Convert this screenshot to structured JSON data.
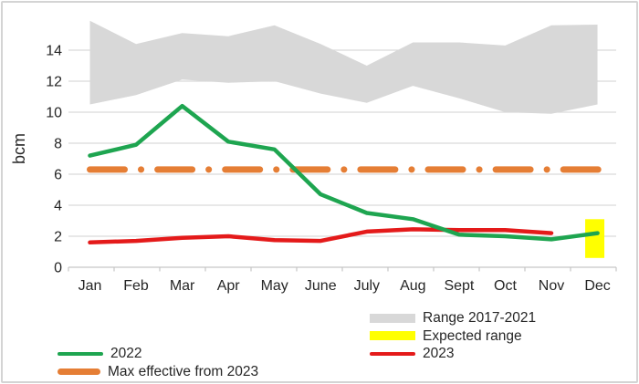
{
  "colors": {
    "band": "#d8d8d8",
    "green": "#1ea550",
    "red": "#e41a1a",
    "orange": "#e57e35",
    "yellow": "#ffff00",
    "grid": "#d9d9d9",
    "axis": "#c6c6c6",
    "text": "#262626"
  },
  "chart_data": {
    "type": "line",
    "title": "",
    "xlabel": "",
    "ylabel": "bcm",
    "ylim": [
      0,
      16
    ],
    "y_ticks": [
      0,
      2,
      4,
      6,
      8,
      10,
      12,
      14
    ],
    "grid": true,
    "categories": [
      "Jan",
      "Feb",
      "Mar",
      "Apr",
      "May",
      "June",
      "July",
      "Aug",
      "Sept",
      "Oct",
      "Nov",
      "Dec"
    ],
    "series": [
      {
        "name": "Range 2017-2021",
        "type": "band",
        "color": "#d8d8d8",
        "upper": [
          15.9,
          14.4,
          15.1,
          14.9,
          15.6,
          14.4,
          13.0,
          14.5,
          14.5,
          14.3,
          15.6,
          15.65
        ],
        "lower": [
          10.5,
          11.1,
          12.1,
          11.9,
          12.0,
          11.2,
          10.6,
          11.7,
          10.9,
          10.0,
          9.9,
          10.5
        ]
      },
      {
        "name": "2022",
        "type": "line",
        "color": "#1ea550",
        "values": [
          7.2,
          7.9,
          10.4,
          8.1,
          7.6,
          4.7,
          3.5,
          3.1,
          2.1,
          2.0,
          1.8,
          2.2
        ]
      },
      {
        "name": "2023",
        "type": "line",
        "color": "#e41a1a",
        "values": [
          1.6,
          1.7,
          1.9,
          2.0,
          1.75,
          1.7,
          2.3,
          2.45,
          2.4,
          2.4,
          2.2,
          null
        ]
      },
      {
        "name": "Max effective from 2023",
        "type": "hline-dashdot",
        "color": "#e57e35",
        "value": 6.3
      },
      {
        "name": "Expected range",
        "type": "box",
        "color": "#ffff00",
        "category": "Dec",
        "y_range": [
          0.6,
          3.1
        ]
      }
    ],
    "legend_position": "bottom"
  },
  "legend_left": {
    "items": [
      {
        "label": "2022",
        "color": "#1ea550",
        "swatch": "line"
      },
      {
        "label": "Max effective from 2023",
        "color": "#e57e35",
        "swatch": "thick-line"
      }
    ]
  },
  "legend_right": {
    "items": [
      {
        "label": "Range 2017-2021",
        "color": "#d8d8d8",
        "swatch": "rect"
      },
      {
        "label": "Expected range",
        "color": "#ffff00",
        "swatch": "rect"
      },
      {
        "label": "2023",
        "color": "#e41a1a",
        "swatch": "line"
      }
    ]
  }
}
